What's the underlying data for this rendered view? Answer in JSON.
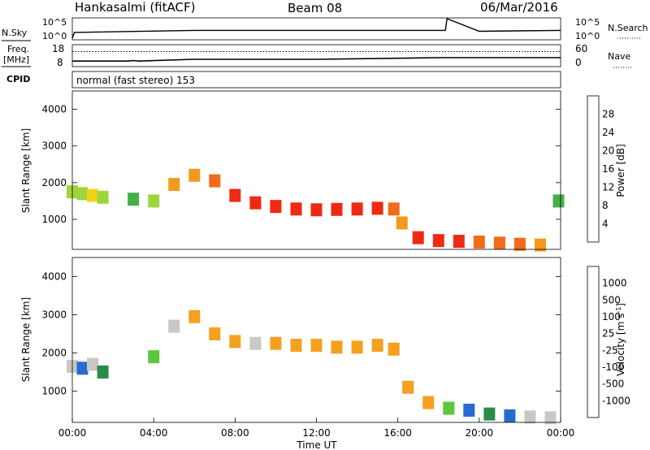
{
  "header": {
    "station": "Hankasalmi (fitACF)",
    "beam": "Beam 08",
    "date": "06/Mar/2016"
  },
  "sky_panel": {
    "left_label": "N.Sky",
    "right_label": "N.Search",
    "left_ticks": [
      "10^5",
      "10^0"
    ],
    "right_ticks": [
      "10^5",
      "10^0"
    ]
  },
  "freq_panel": {
    "left_label_line1": "Freq.",
    "left_label_line2": "[MHz]",
    "right_label": "Nave",
    "left_ticks": [
      "18",
      "8"
    ],
    "right_ticks": [
      "60",
      "0"
    ]
  },
  "cpid": {
    "label": "CPID",
    "mode_text": "normal (fast stereo) 153"
  },
  "power_panel": {
    "ylabel": "Slant Range [km]",
    "yticks": [
      "4000",
      "3000",
      "2000",
      "1000"
    ],
    "colorbar_label": "Power [dB]",
    "colorbar_ticks": [
      "28",
      "24",
      "20",
      "16",
      "12",
      "8",
      "4"
    ],
    "colors": [
      "#1a1ae6",
      "#2a5cc0",
      "#3a8a5a",
      "#45b04a",
      "#9cd63c",
      "#f5d21a",
      "#f39a1e",
      "#f26a1a",
      "#ee2a14"
    ]
  },
  "velocity_panel": {
    "ylabel": "Slant Range [km]",
    "yticks": [
      "4000",
      "3000",
      "2000",
      "1000"
    ],
    "colorbar_label": "Velocity [m s^-1]",
    "colorbar_ticks": [
      "1000",
      "500",
      "100",
      "25",
      "-25",
      "-100",
      "-500",
      "-1000"
    ],
    "colors": [
      "#1a2ab0",
      "#2a6ad0",
      "#2a8a4a",
      "#5ac83a",
      "#c8c8c4",
      "#f5a01e",
      "#f36a14",
      "#ea1a10"
    ],
    "ground_scatter_color": "#c8c8c4"
  },
  "x_axis": {
    "label": "Time UT",
    "ticks": [
      "00:00",
      "04:00",
      "08:00",
      "12:00",
      "16:00",
      "20:00",
      "00:00"
    ]
  },
  "chart_data": [
    {
      "type": "line",
      "title": "N.Sky / N.Search",
      "xlabel": "",
      "ylabel": "N.Sky",
      "x": [
        "00:00",
        "00:06",
        "06:00",
        "12:00",
        "16:00",
        "18:20",
        "18:25",
        "20:00",
        "24:00"
      ],
      "series": [
        {
          "name": "N.Sky",
          "values": [
            1,
            30,
            100,
            100,
            100,
            100,
            100000,
            60,
            100
          ]
        }
      ],
      "ylim": [
        1,
        100000
      ],
      "log_scale": true
    },
    {
      "type": "line",
      "title": "Freq. / Nave",
      "xlabel": "",
      "ylabel": "Freq. [MHz]",
      "x": [
        "00:00",
        "02:45",
        "03:00",
        "03:15",
        "06:00",
        "12:00",
        "18:00",
        "24:00"
      ],
      "series": [
        {
          "name": "Freq.",
          "values": [
            10.2,
            10.2,
            10.5,
            10.2,
            11.2,
            11.2,
            12.1,
            12.1
          ]
        },
        {
          "name": "Nave",
          "values": [
            45,
            45,
            45,
            45,
            45,
            45,
            45,
            45
          ]
        }
      ],
      "ylim": [
        8,
        18
      ]
    },
    {
      "type": "heatmap",
      "title": "Power [dB]",
      "xlabel": "Time UT",
      "ylabel": "Slant Range [km]",
      "xlim": [
        0,
        24
      ],
      "ylim": [
        180,
        4500
      ],
      "zlim": [
        0,
        30
      ],
      "x": [
        0.0,
        0.5,
        1.0,
        1.5,
        3.0,
        4.0,
        5.0,
        6.0,
        7.0,
        8.0,
        9.0,
        10.0,
        11.0,
        12.0,
        13.0,
        14.0,
        15.0,
        15.8,
        16.2,
        17.0,
        18.0,
        19.0,
        20.0,
        21.0,
        22.0,
        23.0,
        23.9
      ],
      "y": [
        1750,
        1700,
        1650,
        1600,
        1550,
        1500,
        1950,
        2200,
        2050,
        1650,
        1450,
        1350,
        1280,
        1260,
        1270,
        1280,
        1300,
        1280,
        900,
        500,
        420,
        400,
        380,
        350,
        320,
        300,
        1500
      ],
      "values": [
        14,
        16,
        18,
        14,
        10,
        14,
        20,
        22,
        26,
        28,
        28,
        29,
        29,
        28,
        28,
        28,
        27,
        26,
        22,
        27,
        28,
        27,
        26,
        24,
        24,
        20,
        10
      ]
    },
    {
      "type": "heatmap",
      "title": "Velocity [m s^-1]",
      "xlabel": "Time UT",
      "ylabel": "Slant Range [km]",
      "xlim": [
        0,
        24
      ],
      "ylim": [
        180,
        4500
      ],
      "zlim": [
        -1000,
        1000
      ],
      "x": [
        0.0,
        0.5,
        1.0,
        1.5,
        4.0,
        5.0,
        6.0,
        7.0,
        8.0,
        9.0,
        10.0,
        11.0,
        12.0,
        13.0,
        14.0,
        15.0,
        15.8,
        16.5,
        17.5,
        18.5,
        19.5,
        20.5,
        21.5,
        22.5,
        23.5
      ],
      "y": [
        1650,
        1600,
        1700,
        1500,
        1900,
        2700,
        2950,
        2500,
        2300,
        2250,
        2250,
        2200,
        2200,
        2150,
        2150,
        2200,
        2100,
        1100,
        700,
        550,
        500,
        400,
        350,
        320,
        300
      ],
      "values": [
        -100,
        100,
        -100,
        25,
        0,
        -100,
        -500,
        -300,
        -200,
        -100,
        -150,
        -200,
        -250,
        -200,
        -150,
        -200,
        -150,
        -500,
        -200,
        0,
        100,
        50,
        200,
        -100,
        -50
      ]
    }
  ]
}
